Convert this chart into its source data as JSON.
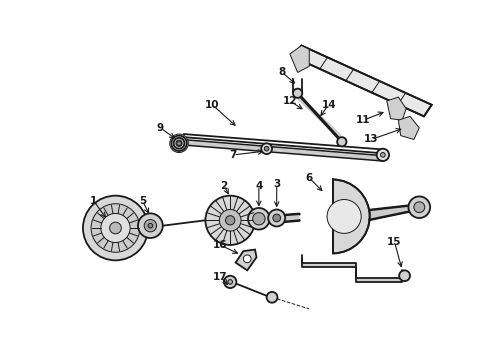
{
  "bg_color": "#ffffff",
  "line_color": "#1a1a1a",
  "fig_width": 4.9,
  "fig_height": 3.6,
  "dpi": 100,
  "label_fontsize": 7.5,
  "lw_thick": 2.2,
  "lw_mid": 1.3,
  "lw_thin": 0.7
}
